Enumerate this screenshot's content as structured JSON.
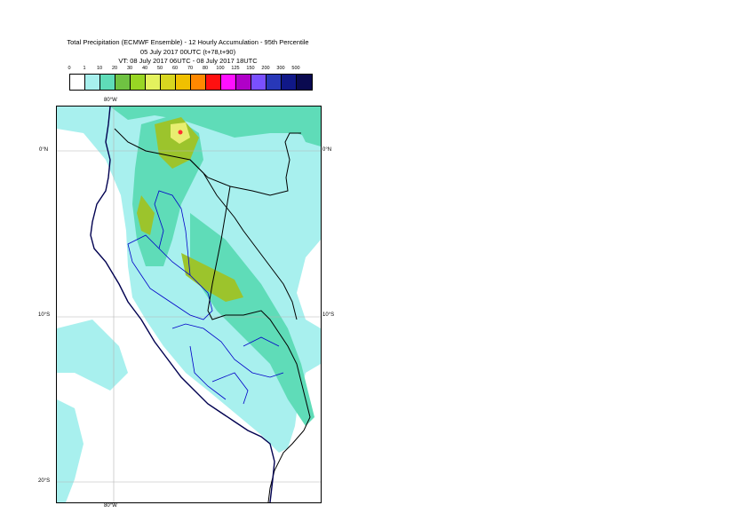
{
  "title": {
    "line1": "Total Precipitation (ECMWF Ensemble) - 12 Hourly Accumulation - 95th Percentile",
    "line2": "05 July 2017 00UTC (t+78,t+90)",
    "line3": "VT: 08 July 2017 06UTC - 08 July 2017 18UTC"
  },
  "legend": {
    "thresholds": [
      "0",
      "1",
      "10",
      "20",
      "30",
      "40",
      "50",
      "60",
      "70",
      "80",
      "100",
      "125",
      "150",
      "200",
      "300",
      "500"
    ],
    "colors": [
      "#ffffff",
      "#a8f0ee",
      "#5fdcb8",
      "#6fc242",
      "#98d624",
      "#e4f25e",
      "#d8d620",
      "#f0c000",
      "#ff8800",
      "#ff1010",
      "#ff10ff",
      "#b000c8",
      "#7a50ff",
      "#2838b8",
      "#101888",
      "#0a0a50"
    ]
  },
  "map": {
    "colors": {
      "light": "#a8f0ee",
      "medium": "#5fdcb8",
      "olive": "#9cc42c",
      "yellow": "#e8ee70",
      "red": "#ff3030",
      "coast": "#000050",
      "border": "#000000",
      "regions": "#0000c8",
      "grid": "#b4b4b4"
    },
    "lon_top": "80°W",
    "lon_bottom": "80°W",
    "lat_left": [
      "0°N",
      "10°S",
      "20°S"
    ],
    "lat_right": [
      "0°N",
      "10°S"
    ]
  }
}
